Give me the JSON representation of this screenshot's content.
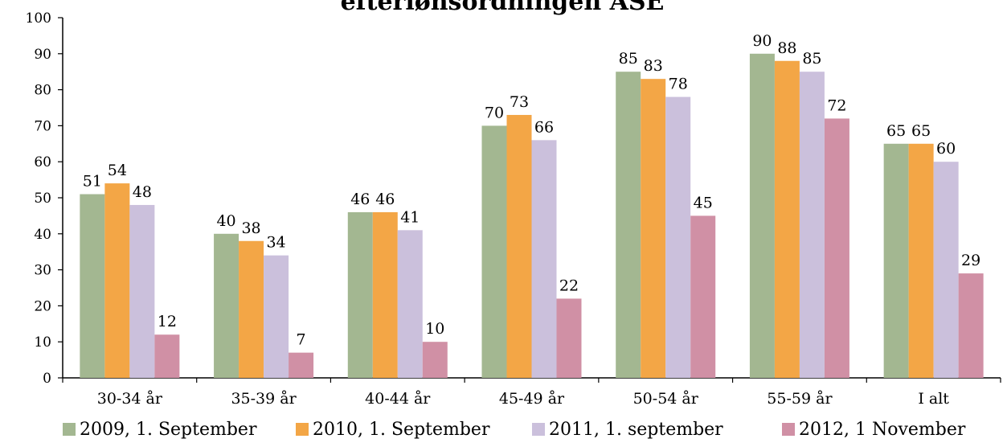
{
  "chart_data": {
    "type": "bar",
    "title": "efterlønsordningen ASE",
    "xlabel": "",
    "ylabel": "",
    "ylim": [
      0,
      100
    ],
    "yticks": [
      0,
      10,
      20,
      30,
      40,
      50,
      60,
      70,
      80,
      90,
      100
    ],
    "grid": false,
    "legend_position": "bottom",
    "categories": [
      "30-34 år",
      "35-39 år",
      "40-44 år",
      "45-49 år",
      "50-54 år",
      "55-59 år",
      "I alt"
    ],
    "series": [
      {
        "name": "2009, 1. September",
        "color": "#a3b791",
        "values": [
          51,
          40,
          46,
          70,
          85,
          90,
          65
        ]
      },
      {
        "name": "2010, 1. September",
        "color": "#f3a646",
        "values": [
          54,
          38,
          46,
          73,
          83,
          88,
          65
        ]
      },
      {
        "name": "2011, 1. september",
        "color": "#cbc0dc",
        "values": [
          48,
          34,
          41,
          66,
          78,
          85,
          60
        ]
      },
      {
        "name": "2012, 1 November",
        "color": "#d090a5",
        "values": [
          12,
          7,
          10,
          22,
          45,
          72,
          29
        ]
      }
    ]
  }
}
